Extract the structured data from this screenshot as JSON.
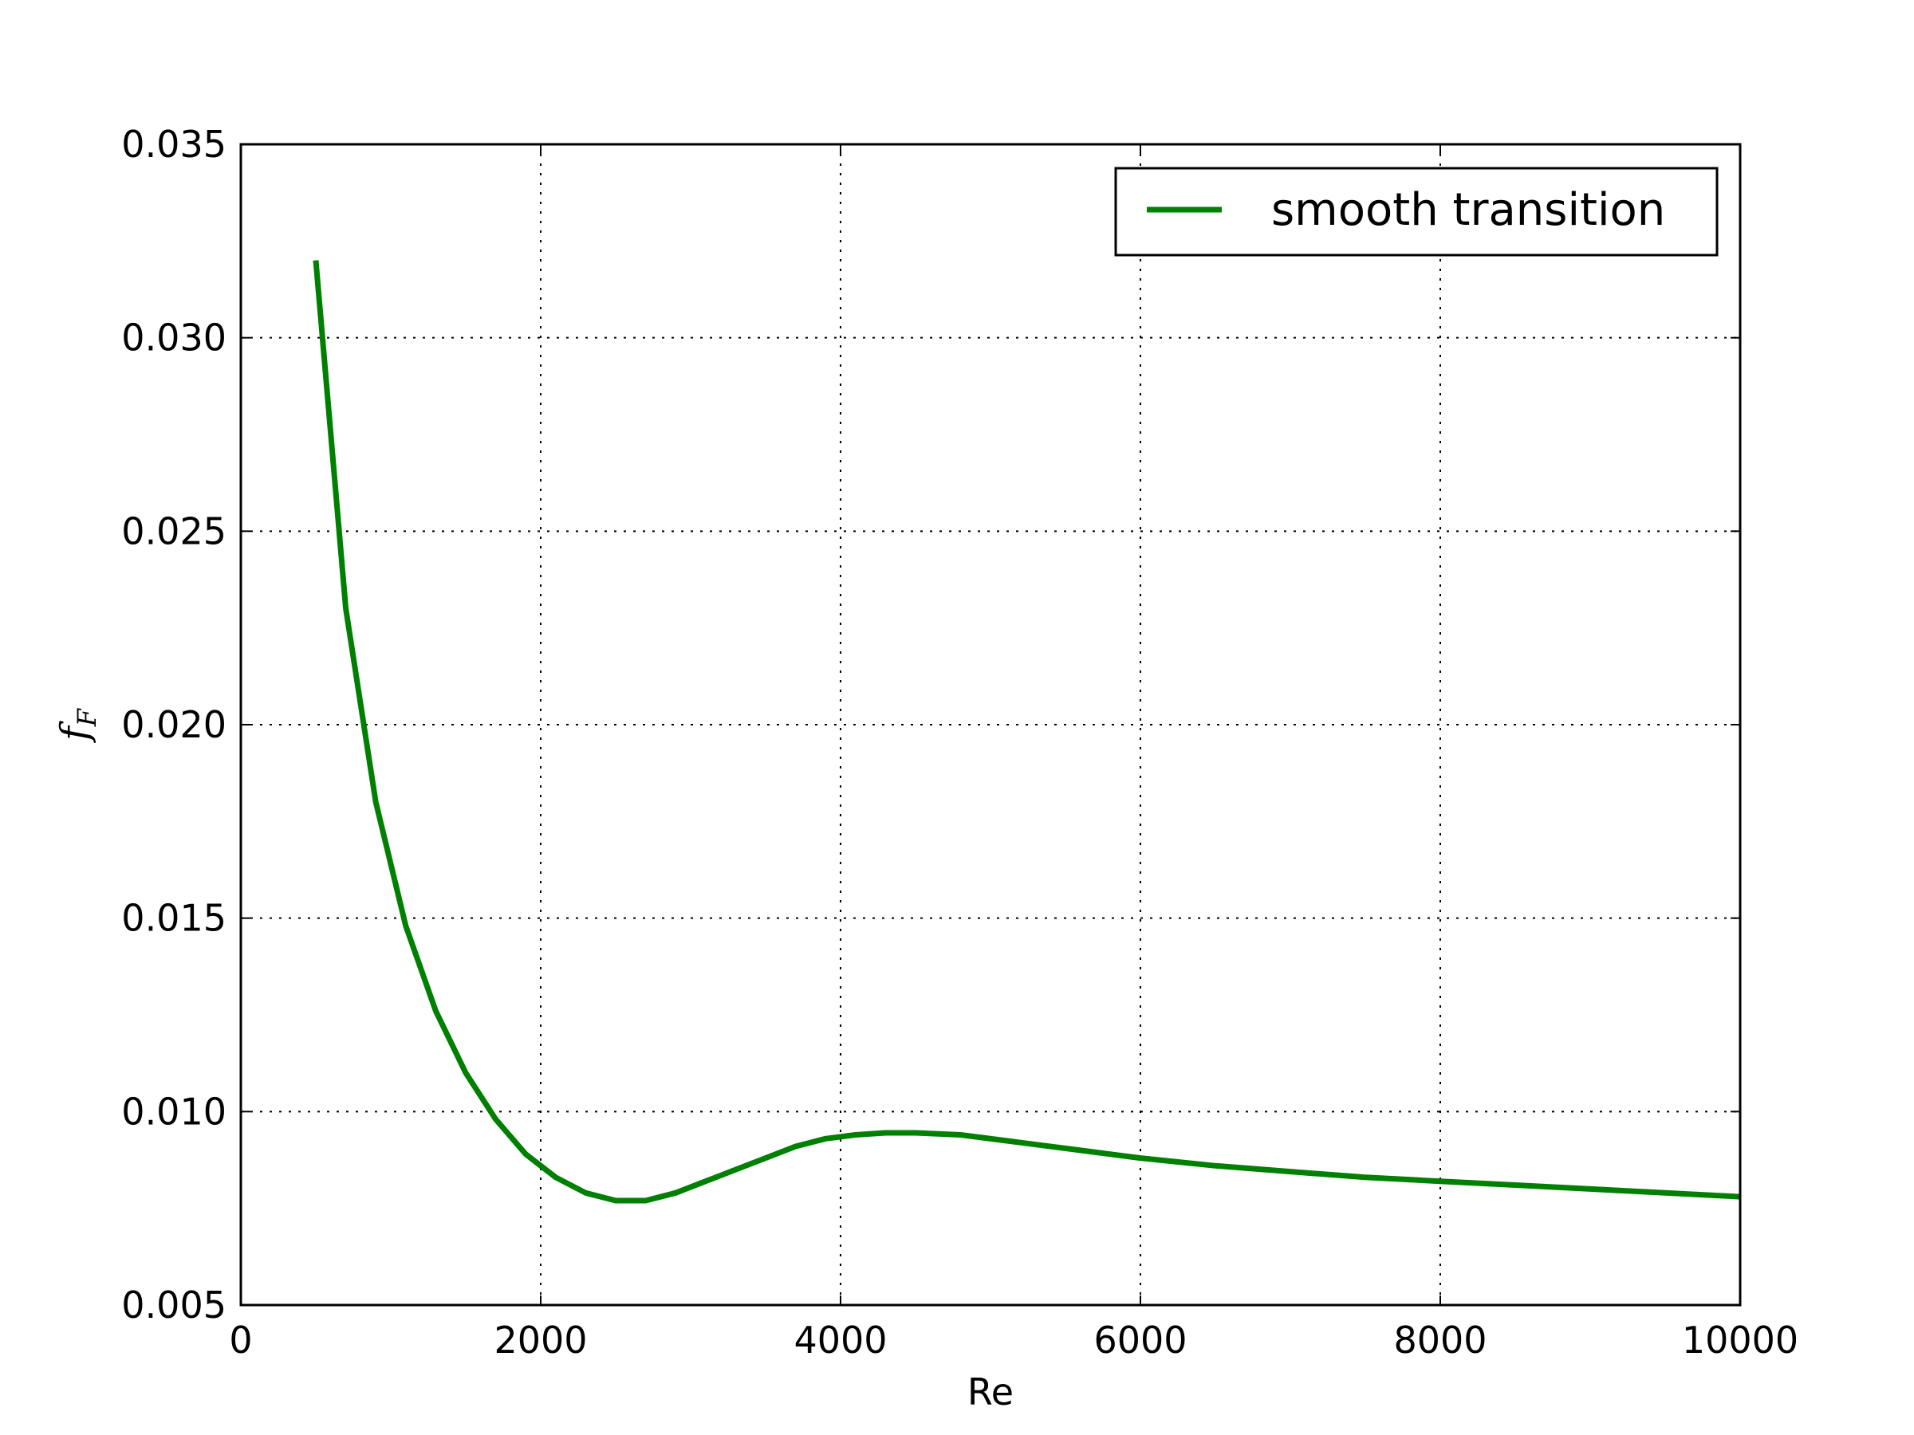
{
  "chart_data": {
    "type": "line",
    "title": "",
    "xlabel": "Re",
    "ylabel": {
      "main": "f",
      "subscript": "F"
    },
    "xlim": [
      0,
      10000
    ],
    "ylim": [
      0.005,
      0.035
    ],
    "xticks": [
      0,
      2000,
      4000,
      6000,
      8000,
      10000
    ],
    "xtick_labels": [
      "0",
      "2000",
      "4000",
      "6000",
      "8000",
      "10000"
    ],
    "yticks": [
      0.005,
      0.01,
      0.015,
      0.02,
      0.025,
      0.03,
      0.035
    ],
    "ytick_labels": [
      "0.005",
      "0.010",
      "0.015",
      "0.020",
      "0.025",
      "0.030",
      "0.035"
    ],
    "grid": true,
    "legend_position": "top-right",
    "series": [
      {
        "name": "smooth transition",
        "color": "#008000",
        "x": [
          500,
          700,
          900,
          1100,
          1300,
          1500,
          1700,
          1900,
          2100,
          2300,
          2500,
          2700,
          2900,
          3100,
          3300,
          3500,
          3700,
          3900,
          4100,
          4300,
          4500,
          4800,
          5200,
          5600,
          6000,
          6500,
          7000,
          7500,
          8000,
          8500,
          9000,
          9500,
          10000
        ],
        "y": [
          0.032,
          0.023,
          0.018,
          0.0148,
          0.0126,
          0.011,
          0.0098,
          0.0089,
          0.0083,
          0.0079,
          0.0077,
          0.0077,
          0.0079,
          0.0082,
          0.0085,
          0.0088,
          0.0091,
          0.0093,
          0.0094,
          0.00945,
          0.00945,
          0.0094,
          0.0092,
          0.009,
          0.0088,
          0.0086,
          0.00845,
          0.0083,
          0.0082,
          0.0081,
          0.008,
          0.0079,
          0.0078
        ]
      }
    ]
  }
}
